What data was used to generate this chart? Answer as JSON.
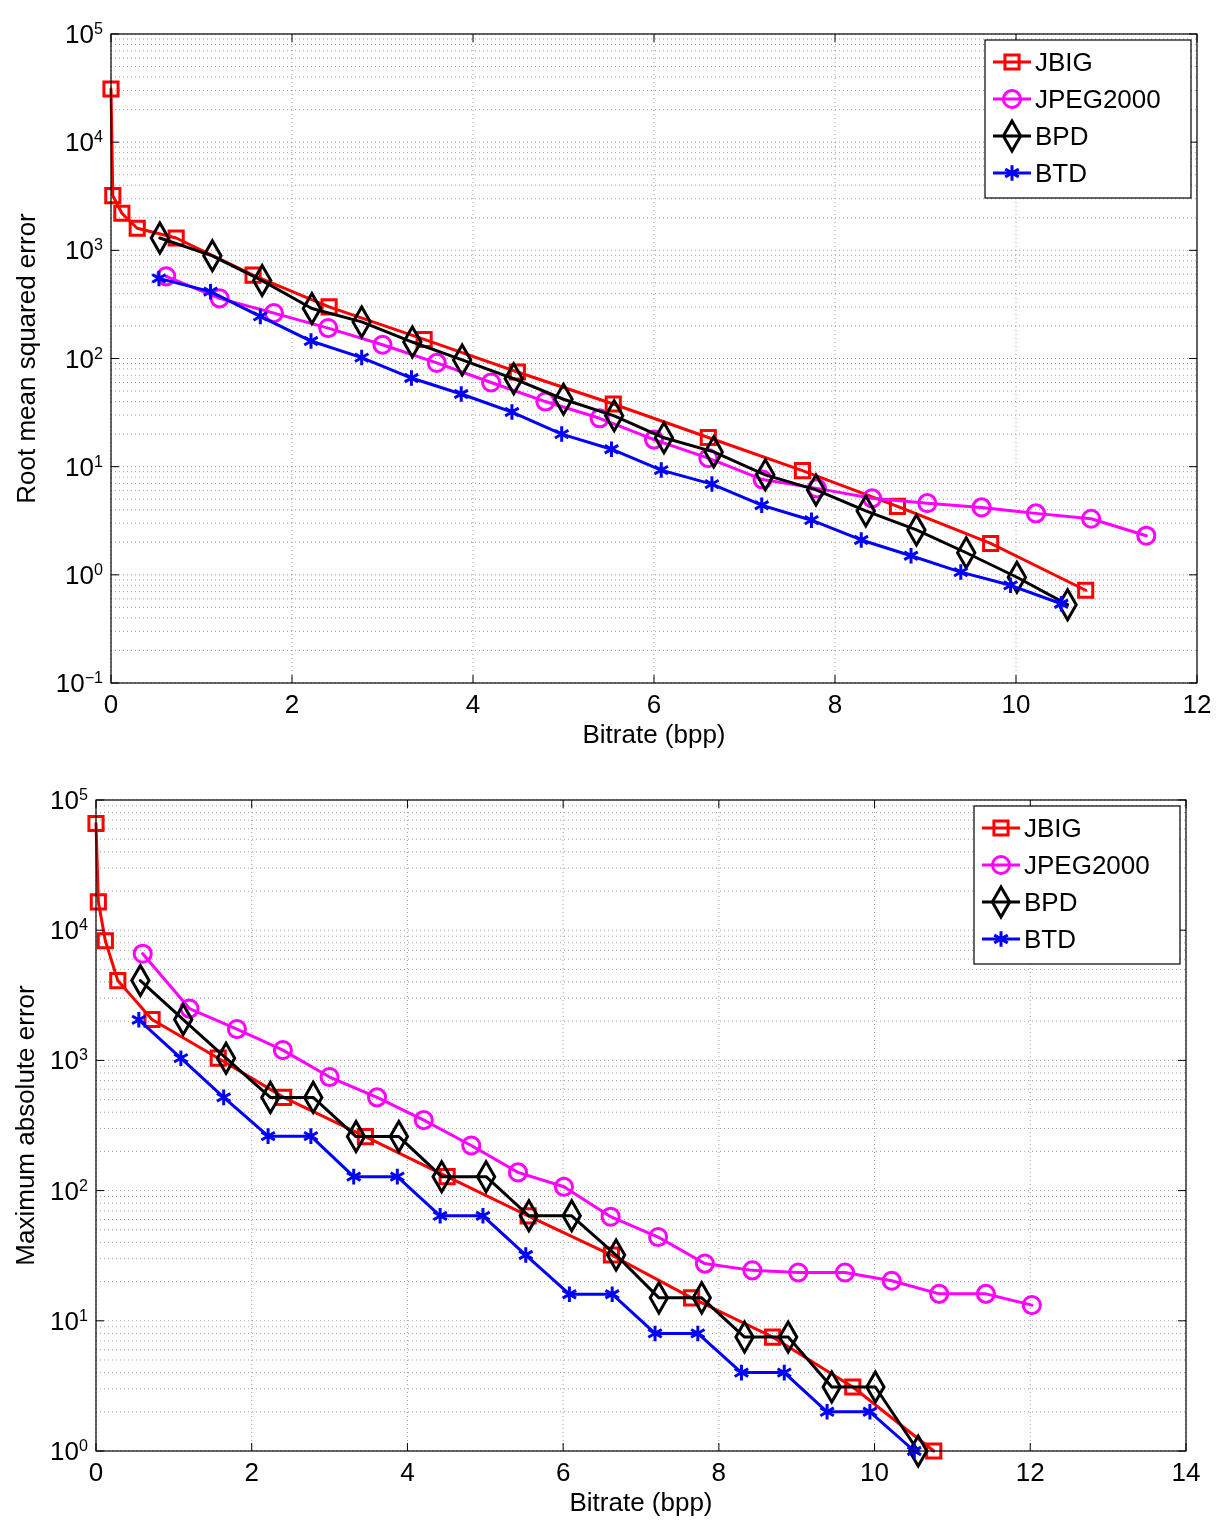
{
  "chart_data": [
    {
      "type": "line",
      "xlabel": "Bitrate (bpp)",
      "ylabel": "Root mean squared error",
      "log": "y",
      "grid": true,
      "legend": "top right",
      "line_style": "solid",
      "xlim": [
        0,
        12
      ],
      "xticks": [
        0,
        2,
        4,
        6,
        8,
        10,
        12
      ],
      "ylim": [
        0.1,
        100000
      ],
      "yticks": [
        {
          "value": 0.1,
          "label": "10$^{−1}$"
        },
        {
          "value": 1,
          "label": "10$^{0}$"
        },
        {
          "value": 10,
          "label": "10$^{1}$"
        },
        {
          "value": 100,
          "label": "10$^{2}$"
        },
        {
          "value": 1000,
          "label": "10$^{3}$"
        },
        {
          "value": 10000,
          "label": "10$^{4}$"
        },
        {
          "value": 100000,
          "label": "10$^{5}$"
        }
      ],
      "series": [
        {
          "name": "JBIG",
          "color": "#ff0000",
          "marker": "square",
          "x": [
            0,
            0.02,
            0.12,
            0.29,
            0.72,
            1.57,
            2.41,
            3.46,
            4.49,
            5.55,
            6.6,
            7.64,
            8.69,
            9.72,
            10.77
          ],
          "values": [
            31000,
            3200,
            2200,
            1600,
            1300,
            590,
            300,
            150,
            75,
            38,
            18.6,
            9.2,
            4.3,
            1.95,
            0.72
          ]
        },
        {
          "name": "JPEG2000",
          "color": "#ff00ff",
          "marker": "circle",
          "x": [
            0.61,
            1.2,
            1.8,
            2.4,
            3.0,
            3.6,
            4.2,
            4.8,
            5.4,
            6.0,
            6.6,
            7.2,
            7.8,
            8.41,
            9.02,
            9.62,
            10.22,
            10.83,
            11.44
          ],
          "values": [
            575,
            360,
            263,
            191,
            134,
            91,
            60,
            40,
            28,
            17.8,
            12,
            7.6,
            6.3,
            5.1,
            4.6,
            4.2,
            3.7,
            3.3,
            2.3
          ]
        },
        {
          "name": "BPD",
          "color": "#000000",
          "marker": "diamond",
          "x": [
            0.54,
            1.12,
            1.67,
            2.22,
            2.77,
            3.33,
            3.88,
            4.45,
            5.0,
            5.56,
            6.11,
            6.66,
            7.23,
            7.79,
            8.34,
            8.9,
            9.45,
            10.01,
            10.57
          ],
          "values": [
            1300,
            890,
            525,
            290,
            218,
            142,
            97,
            65,
            42,
            29.5,
            18.5,
            13.7,
            8.4,
            6.1,
            3.9,
            2.6,
            1.6,
            0.95,
            0.53
          ]
        },
        {
          "name": "BTD",
          "color": "#0000ff",
          "marker": "cross",
          "x": [
            0.53,
            1.1,
            1.65,
            2.21,
            2.77,
            3.32,
            3.87,
            4.43,
            4.98,
            5.53,
            6.08,
            6.64,
            7.19,
            7.74,
            8.29,
            8.84,
            9.39,
            9.94,
            10.5
          ],
          "values": [
            550,
            415,
            245,
            145,
            102,
            66,
            47,
            32,
            20,
            14.5,
            9.3,
            6.9,
            4.4,
            3.2,
            2.1,
            1.5,
            1.06,
            0.8,
            0.54
          ]
        }
      ]
    },
    {
      "type": "line",
      "xlabel": "Bitrate (bpp)",
      "ylabel": "Maximum absolute error",
      "log": "y",
      "grid": true,
      "legend": "top right",
      "line_style": "solid",
      "xlim": [
        0,
        14
      ],
      "xticks": [
        0,
        2,
        4,
        6,
        8,
        10,
        12,
        14
      ],
      "ylim": [
        1,
        100000
      ],
      "yticks": [
        {
          "value": 1,
          "label": "10$^{0}$"
        },
        {
          "value": 10,
          "label": "10$^{1}$"
        },
        {
          "value": 100,
          "label": "10$^{2}$"
        },
        {
          "value": 1000,
          "label": "10$^{3}$"
        },
        {
          "value": 10000,
          "label": "10$^{4}$"
        },
        {
          "value": 100000,
          "label": "10$^{5}$"
        }
      ],
      "series": [
        {
          "name": "JBIG",
          "color": "#ff0000",
          "marker": "square",
          "x": [
            0,
            0.03,
            0.12,
            0.28,
            0.72,
            1.57,
            2.41,
            3.46,
            4.51,
            5.55,
            6.62,
            7.65,
            8.69,
            9.72,
            10.76
          ],
          "values": [
            66000,
            16500,
            8300,
            4100,
            2060,
            1040,
            520,
            260,
            128,
            64,
            32,
            15,
            7.5,
            3.1,
            1
          ]
        },
        {
          "name": "JPEG2000",
          "color": "#ff00ff",
          "marker": "circle",
          "x": [
            0.6,
            1.2,
            1.81,
            2.4,
            3.0,
            3.61,
            4.21,
            4.82,
            5.42,
            6.01,
            6.61,
            7.22,
            7.82,
            8.43,
            9.02,
            9.62,
            10.22,
            10.83,
            11.43,
            12.02
          ],
          "values": [
            6600,
            2500,
            1740,
            1200,
            745,
            520,
            348,
            222,
            138,
            107,
            63,
            44,
            27.5,
            24.4,
            23.5,
            23.5,
            20.3,
            16.1,
            16.1,
            13.2
          ]
        },
        {
          "name": "BPD",
          "color": "#000000",
          "marker": "diamond",
          "x": [
            0.57,
            1.12,
            1.67,
            2.24,
            2.79,
            3.34,
            3.89,
            4.44,
            5.01,
            5.56,
            6.11,
            6.68,
            7.23,
            7.78,
            8.33,
            8.89,
            9.45,
            10.01,
            10.56
          ],
          "values": [
            4100,
            2060,
            1040,
            520,
            520,
            260,
            260,
            128,
            128,
            64,
            64,
            32,
            15,
            15,
            7.5,
            7.5,
            3.1,
            3.1,
            1
          ]
        },
        {
          "name": "BTD",
          "color": "#0000ff",
          "marker": "cross",
          "x": [
            0.55,
            1.09,
            1.64,
            2.21,
            2.76,
            3.31,
            3.87,
            4.42,
            4.97,
            5.52,
            6.08,
            6.63,
            7.18,
            7.73,
            8.29,
            8.84,
            9.39,
            9.94,
            10.51
          ],
          "values": [
            2050,
            1040,
            520,
            262,
            262,
            128,
            128,
            64,
            64,
            32,
            16,
            16,
            8,
            8,
            4,
            4,
            2,
            2,
            1
          ]
        }
      ]
    }
  ]
}
